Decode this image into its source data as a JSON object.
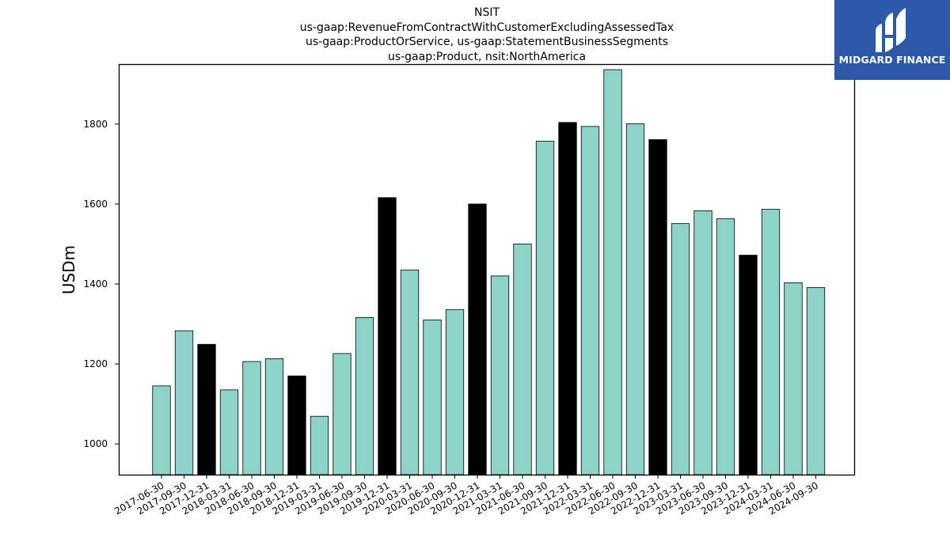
{
  "brand": {
    "name": "MIDGARD FINANCE",
    "logo_color": "#2b58a8"
  },
  "chart_data": {
    "type": "bar",
    "title_lines": [
      "NSIT",
      "us-gaap:RevenueFromContractWithCustomerExcludingAssessedTax",
      "us-gaap:ProductOrService, us-gaap:StatementBusinessSegments",
      "us-gaap:Product, nsit:NorthAmerica"
    ],
    "xlabel": "",
    "ylabel": "USDm",
    "ylim": [
      923,
      1950
    ],
    "yticks": [
      1000,
      1200,
      1400,
      1600,
      1800
    ],
    "grid": false,
    "categories": [
      "2017-06-30",
      "2017-09-30",
      "2017-12-31",
      "2018-03-31",
      "2018-06-30",
      "2018-09-30",
      "2018-12-31",
      "2019-03-31",
      "2019-06-30",
      "2019-09-30",
      "2019-12-31",
      "2020-03-31",
      "2020-06-30",
      "2020-09-30",
      "2020-12-31",
      "2021-03-31",
      "2021-06-30",
      "2021-09-30",
      "2021-12-31",
      "2022-03-31",
      "2022-06-30",
      "2022-09-30",
      "2022-12-31",
      "2023-03-31",
      "2023-06-30",
      "2023-09-30",
      "2023-12-31",
      "2024-03-31",
      "2024-06-30",
      "2024-09-30"
    ],
    "values": [
      1145,
      1283,
      1249,
      1135,
      1206,
      1213,
      1170,
      1069,
      1226,
      1316,
      1616,
      1435,
      1310,
      1336,
      1600,
      1420,
      1500,
      1757,
      1804,
      1794,
      1936,
      1801,
      1761,
      1551,
      1583,
      1563,
      1472,
      1587,
      1403,
      1391
    ],
    "colors": {
      "quarter": "#8dd3c7",
      "year_end": "#000000",
      "edge": "#000000"
    },
    "year_end_indices": [
      2,
      6,
      10,
      14,
      18,
      22,
      26
    ]
  }
}
